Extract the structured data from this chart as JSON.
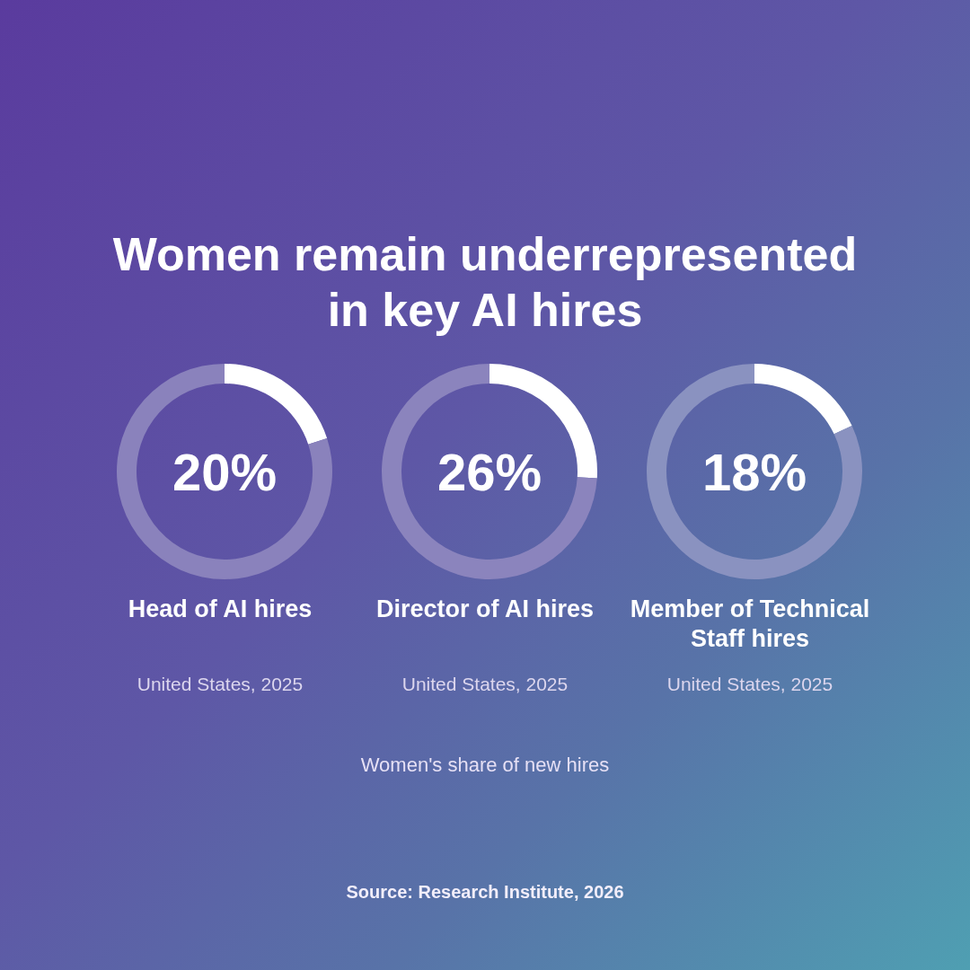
{
  "chart_data": [
    {
      "type": "other",
      "title": "Women remain underrepresented in key AI hires"
    },
    {
      "type": "donut",
      "title": "Head of AI hires",
      "subtitle": "United States, 2025",
      "categories": [
        null,
        null
      ],
      "values": [
        20,
        80
      ],
      "colors": [
        "#ffffff",
        "#8a82bc"
      ],
      "value_labels": [
        "20%",
        null
      ]
    },
    {
      "type": "donut",
      "title": "Director of AI hires",
      "subtitle": "United States, 2025",
      "categories": [
        null,
        null
      ],
      "values": [
        26,
        74
      ],
      "colors": [
        "#ffffff",
        "#8b84bd"
      ],
      "value_labels": [
        "26%",
        null
      ]
    },
    {
      "type": "donut",
      "title": "Member of Technical Staff hires",
      "subtitle": "United States, 2025",
      "categories": [
        null,
        null
      ],
      "values": [
        18,
        82
      ],
      "colors": [
        "#ffffff",
        "#8a92c0"
      ],
      "value_labels": [
        "18%",
        null
      ]
    },
    {
      "type": "other",
      "annotations": [
        "Women's share of new hires",
        "Source: Research Institute, 2026"
      ]
    }
  ]
}
